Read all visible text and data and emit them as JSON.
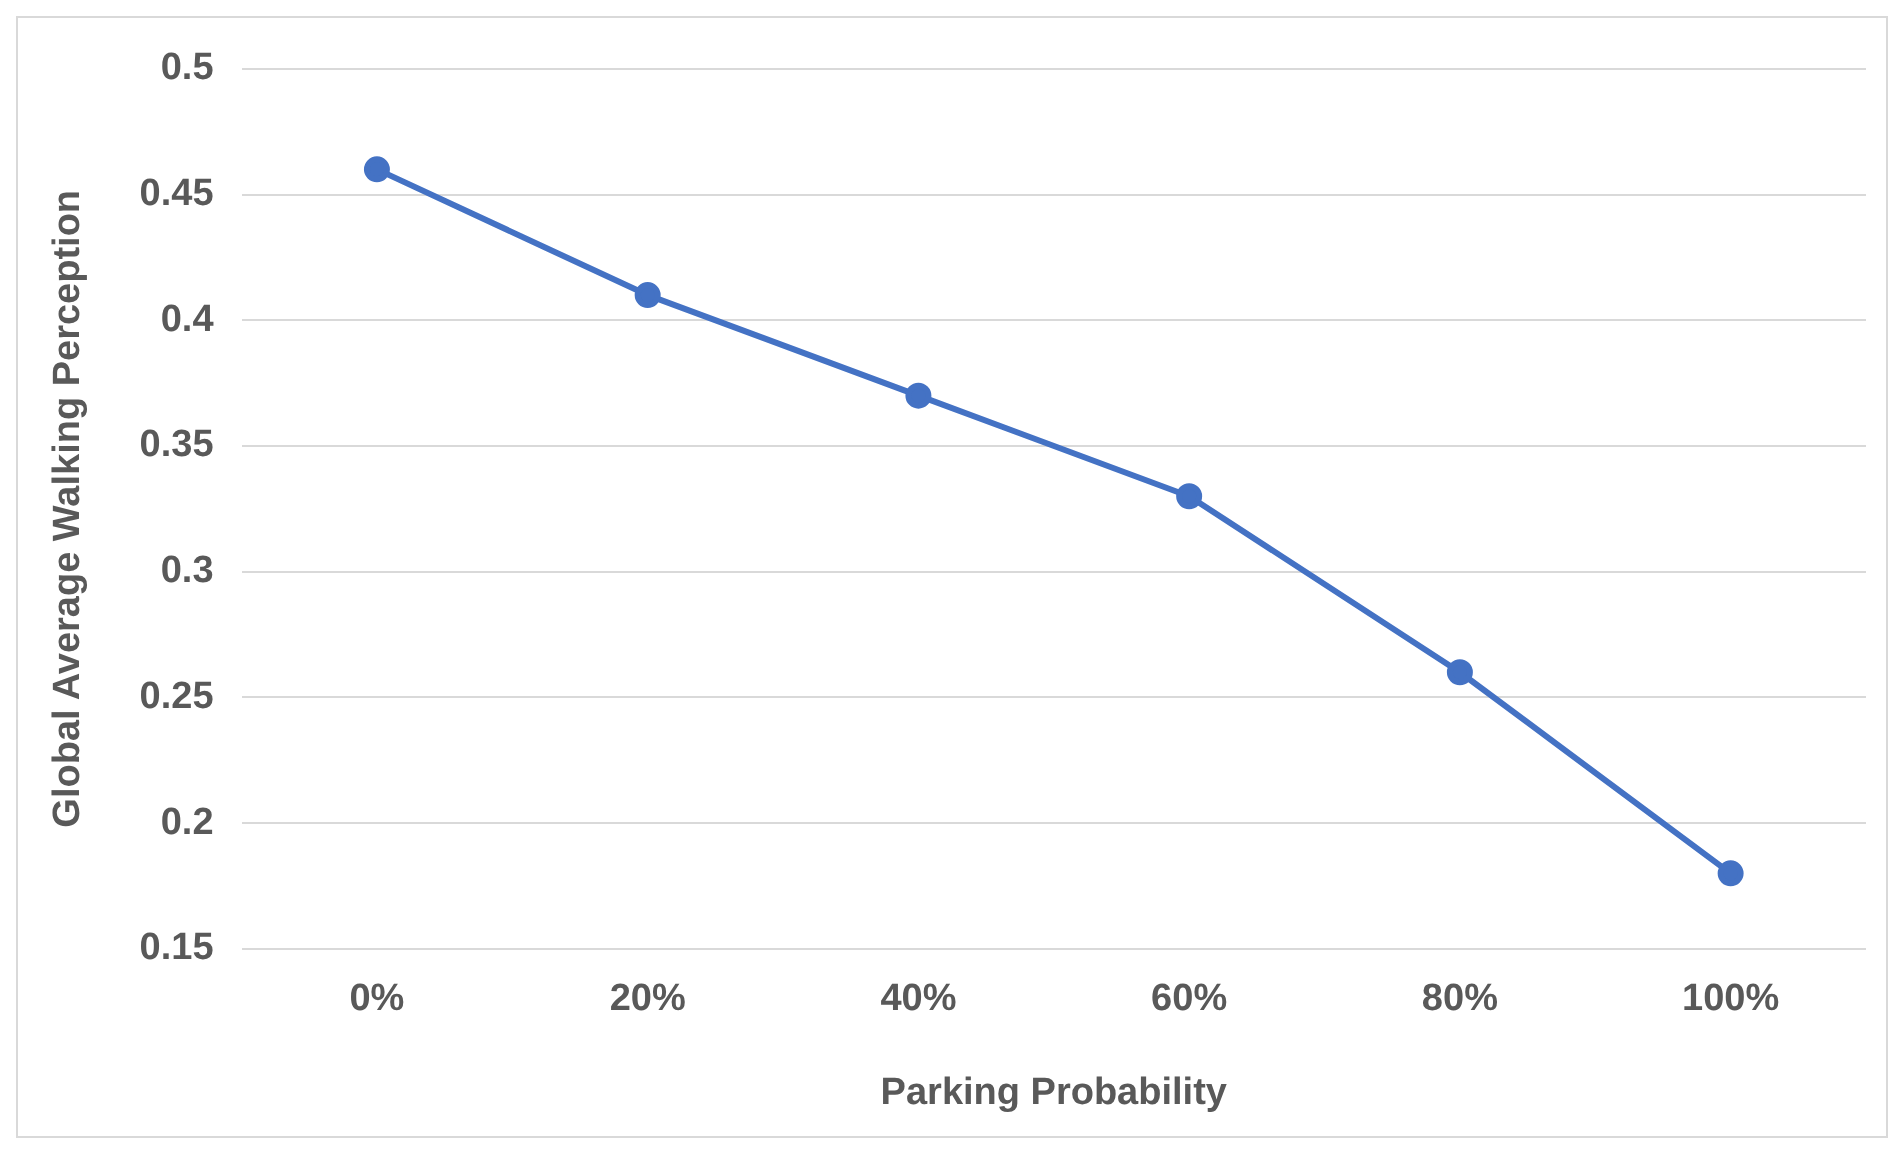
{
  "chart_data": {
    "type": "line",
    "xlabel": "Parking Probability",
    "ylabel": "Global Average Walking Perception",
    "categories": [
      "0%",
      "20%",
      "40%",
      "60%",
      "80%",
      "100%"
    ],
    "series": [
      {
        "color": "#4472c4",
        "values": [
          0.46,
          0.41,
          0.37,
          0.33,
          0.26,
          0.18
        ]
      }
    ],
    "ylim": [
      0.15,
      0.5
    ],
    "yticks": [
      0.15,
      0.2,
      0.25,
      0.3,
      0.35,
      0.4,
      0.45,
      0.5
    ],
    "grid": "y",
    "marker": "circle",
    "line_style": "solid",
    "legend": false
  }
}
